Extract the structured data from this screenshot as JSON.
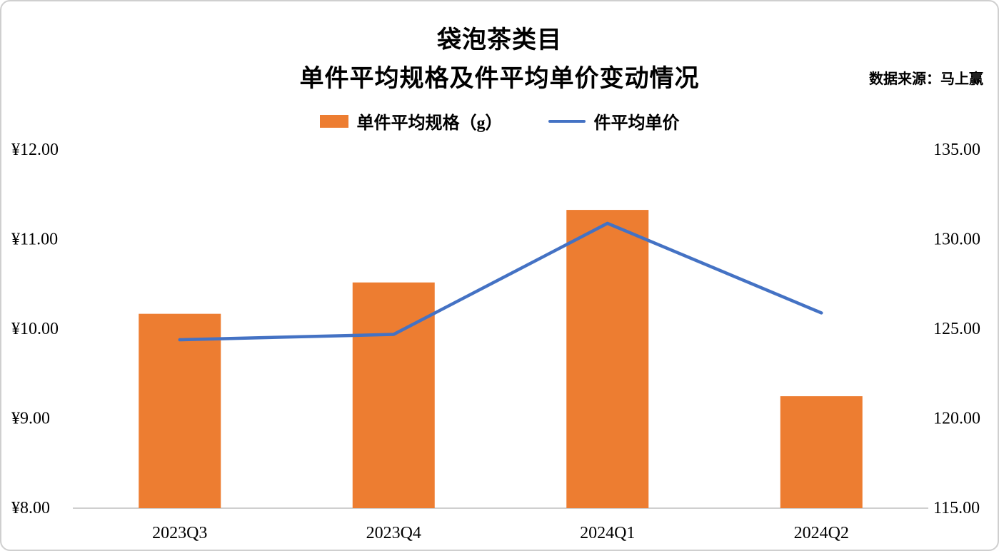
{
  "header": {
    "title_line1": "袋泡茶类目",
    "title_line2": "单件平均规格及件平均单价变动情况",
    "source": "数据来源：马上赢"
  },
  "legend": {
    "bar_label": "单件平均规格（g）",
    "line_label": "件平均单价"
  },
  "chart_data": {
    "type": "bar+line combo",
    "categories": [
      "2023Q3",
      "2023Q4",
      "2024Q1",
      "2024Q2"
    ],
    "series": [
      {
        "name": "单件平均规格（g）",
        "type": "bar",
        "axis": "left",
        "color": "#ED7D31",
        "values": [
          10.17,
          10.52,
          11.33,
          9.25
        ]
      },
      {
        "name": "件平均单价",
        "type": "line",
        "axis": "right",
        "color": "#4472C4",
        "values": [
          124.4,
          124.7,
          130.9,
          125.9
        ]
      }
    ],
    "left_axis": {
      "ticks": [
        "¥12.00",
        "¥11.00",
        "¥10.00",
        "¥9.00",
        "¥8.00"
      ],
      "min": 8,
      "max": 12
    },
    "right_axis": {
      "ticks": [
        "135.00",
        "130.00",
        "125.00",
        "120.00",
        "115.00"
      ],
      "min": 115,
      "max": 135
    },
    "grid": false,
    "legend_position": "top-center"
  }
}
